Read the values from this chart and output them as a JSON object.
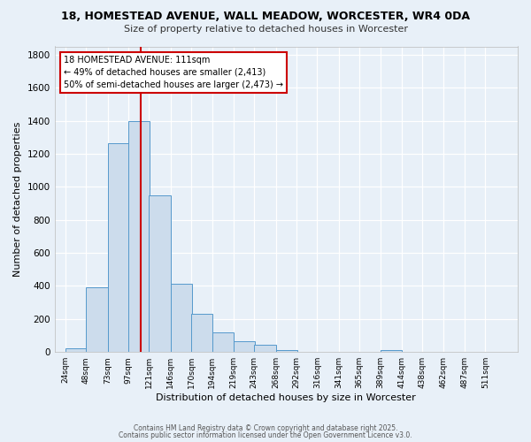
{
  "title1": "18, HOMESTEAD AVENUE, WALL MEADOW, WORCESTER, WR4 0DA",
  "title2": "Size of property relative to detached houses in Worcester",
  "xlabel": "Distribution of detached houses by size in Worcester",
  "ylabel": "Number of detached properties",
  "bar_color": "#ccdcec",
  "bar_edge_color": "#5599cc",
  "background_color": "#e8f0f8",
  "grid_color": "#ffffff",
  "bin_labels": [
    "24sqm",
    "48sqm",
    "73sqm",
    "97sqm",
    "121sqm",
    "146sqm",
    "170sqm",
    "194sqm",
    "219sqm",
    "243sqm",
    "268sqm",
    "292sqm",
    "316sqm",
    "341sqm",
    "365sqm",
    "389sqm",
    "414sqm",
    "438sqm",
    "462sqm",
    "487sqm",
    "511sqm"
  ],
  "bar_values": [
    25,
    390,
    1265,
    1400,
    950,
    415,
    230,
    120,
    65,
    45,
    10,
    0,
    0,
    0,
    0,
    10,
    0,
    0,
    0,
    0,
    0
  ],
  "property_line_x": 111,
  "bin_width": 25,
  "annotation_line1": "18 HOMESTEAD AVENUE: 111sqm",
  "annotation_line2": "← 49% of detached houses are smaller (2,413)",
  "annotation_line3": "50% of semi-detached houses are larger (2,473) →",
  "annotation_box_color": "#ffffff",
  "annotation_box_edge_color": "#cc0000",
  "property_line_color": "#cc0000",
  "ylim": [
    0,
    1850
  ],
  "yticks": [
    0,
    200,
    400,
    600,
    800,
    1000,
    1200,
    1400,
    1600,
    1800
  ],
  "footer1": "Contains HM Land Registry data © Crown copyright and database right 2025.",
  "footer2": "Contains public sector information licensed under the Open Government Licence v3.0."
}
